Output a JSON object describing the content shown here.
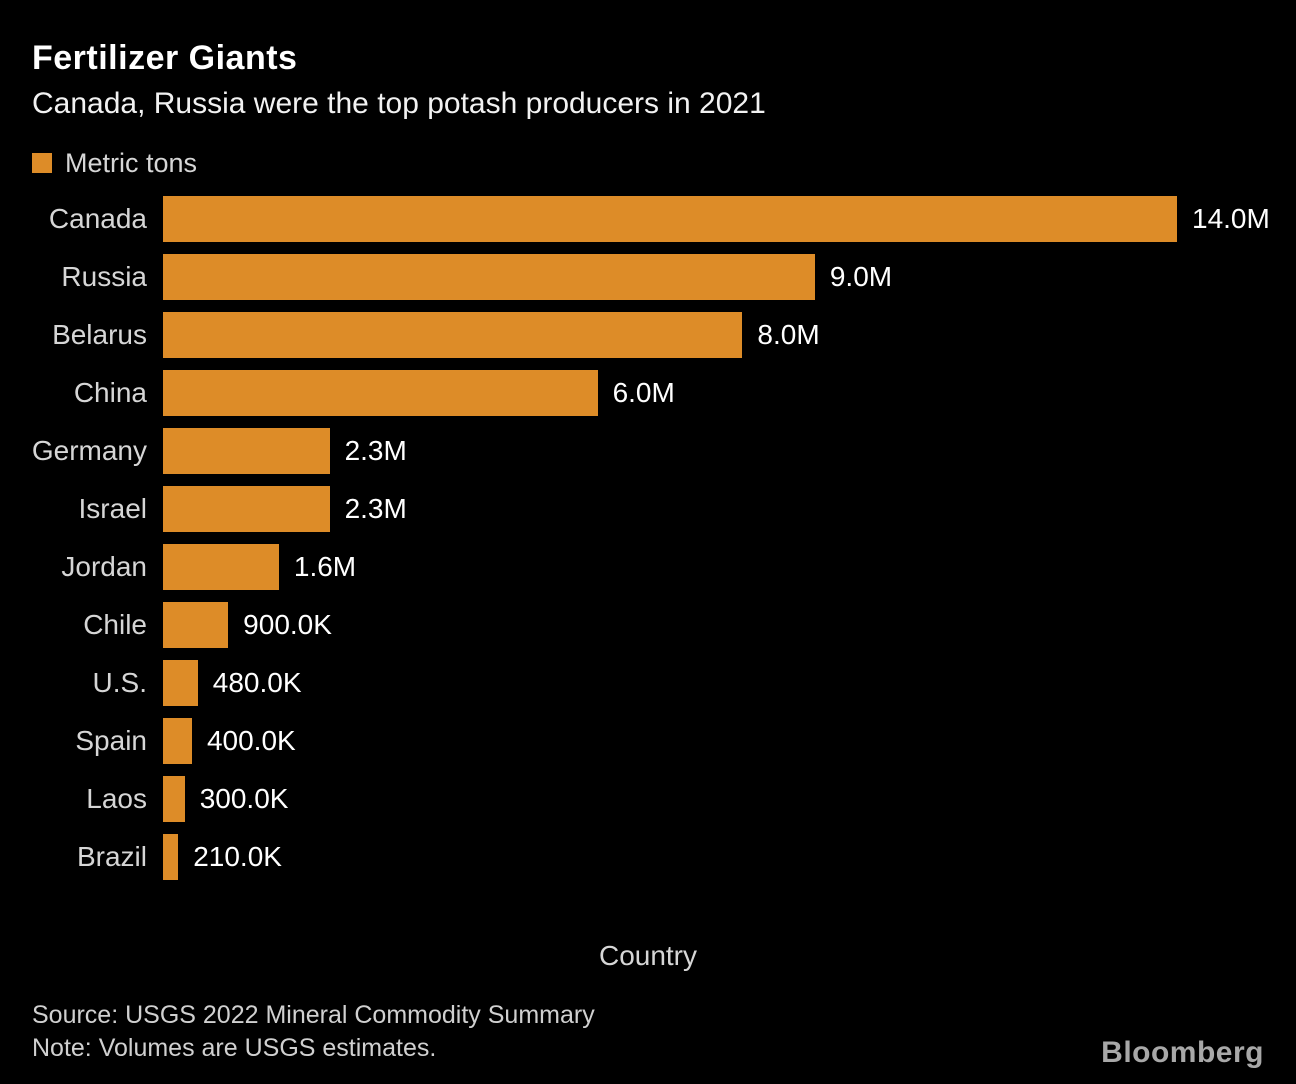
{
  "header": {
    "title": "Fertilizer Giants",
    "subtitle": "Canada, Russia were the top potash producers in 2021"
  },
  "legend": {
    "label": "Metric tons",
    "swatch_color": "#DD8C28"
  },
  "chart_data": {
    "type": "bar",
    "orientation": "horizontal",
    "title": "Fertilizer Giants",
    "subtitle": "Canada, Russia were the top potash producers in 2021",
    "unit": "Metric tons",
    "xlabel": "Country",
    "ylabel": "Metric tons",
    "xlim": [
      0,
      14000000
    ],
    "grid": false,
    "legend_position": "top-left",
    "bar_color": "#DD8C28",
    "categories": [
      "Canada",
      "Russia",
      "Belarus",
      "China",
      "Germany",
      "Israel",
      "Jordan",
      "Chile",
      "U.S.",
      "Spain",
      "Laos",
      "Brazil"
    ],
    "values": [
      14000000,
      9000000,
      8000000,
      6000000,
      2300000,
      2300000,
      1600000,
      900000,
      480000,
      400000,
      300000,
      210000
    ],
    "value_labels": [
      "14.0M",
      "9.0M",
      "8.0M",
      "6.0M",
      "2.3M",
      "2.3M",
      "1.6M",
      "900.0K",
      "480.0K",
      "400.0K",
      "300.0K",
      "210.0K"
    ]
  },
  "axis": {
    "label": "Country"
  },
  "footer": {
    "source": "Source: USGS 2022 Mineral Commodity Summary",
    "note": "Note: Volumes are USGS estimates.",
    "brand": "Bloomberg"
  }
}
